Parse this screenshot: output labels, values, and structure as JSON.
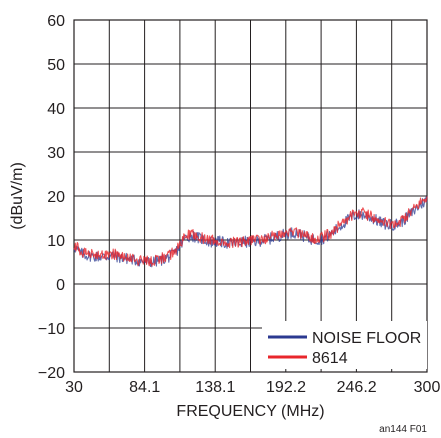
{
  "chart_data": {
    "type": "line",
    "title": "",
    "xlabel": "FREQUENCY (MHz)",
    "ylabel": "(dBuV/m)",
    "xlim": [
      30,
      300
    ],
    "ylim": [
      -20,
      60
    ],
    "x_tick_values": [
      30,
      84.1,
      138.1,
      192.2,
      246.2,
      300
    ],
    "x_tick_labels": [
      "30",
      "84.1",
      "138.1",
      "192.2",
      "246.2",
      "300"
    ],
    "y_tick_values": [
      -20,
      -10,
      0,
      10,
      20,
      30,
      40,
      50,
      60
    ],
    "y_tick_labels": [
      "−20",
      "−10",
      "0",
      "10",
      "20",
      "30",
      "40",
      "50",
      "60"
    ],
    "grid": true,
    "legend_position": "bottom-right",
    "figure_code": "an144 F01",
    "series": [
      {
        "name": "NOISE FLOOR",
        "color": "#2b3990",
        "x": [
          30,
          35,
          40,
          45,
          50,
          55,
          60,
          65,
          70,
          75,
          80,
          85,
          90,
          95,
          100,
          105,
          110,
          115,
          120,
          125,
          130,
          135,
          140,
          145,
          150,
          155,
          160,
          165,
          170,
          175,
          180,
          185,
          190,
          195,
          200,
          205,
          210,
          215,
          220,
          225,
          230,
          235,
          240,
          245,
          250,
          255,
          260,
          265,
          270,
          275,
          280,
          285,
          290,
          295,
          300
        ],
        "y": [
          8.5,
          7,
          6.5,
          6.3,
          6.2,
          6.2,
          6.5,
          6,
          5.8,
          5.5,
          5.2,
          5,
          5,
          5.3,
          5.8,
          6.5,
          8,
          10.5,
          11,
          10.5,
          10,
          9.5,
          9.7,
          9.4,
          9.2,
          9.3,
          9.6,
          9.5,
          9.7,
          10,
          10.3,
          10.8,
          11.2,
          11.6,
          11.7,
          11,
          10.3,
          10,
          10.3,
          11,
          12.2,
          13.5,
          14.7,
          15.6,
          15.8,
          15.4,
          14.7,
          13.9,
          13.4,
          13.5,
          14,
          15.2,
          16.6,
          18,
          19.2
        ]
      },
      {
        "name": "8614",
        "color": "#e8262b",
        "x": [
          30,
          35,
          40,
          45,
          50,
          55,
          60,
          65,
          70,
          75,
          80,
          85,
          90,
          95,
          100,
          105,
          110,
          115,
          120,
          125,
          130,
          135,
          140,
          145,
          150,
          155,
          160,
          165,
          170,
          175,
          180,
          185,
          190,
          195,
          200,
          205,
          210,
          215,
          220,
          225,
          230,
          235,
          240,
          245,
          250,
          255,
          260,
          265,
          270,
          275,
          280,
          285,
          290,
          295,
          300
        ],
        "y": [
          9,
          7.5,
          7,
          6.5,
          6.5,
          6.3,
          7,
          6.2,
          6,
          5.7,
          5.3,
          5.2,
          5.3,
          5.5,
          6.2,
          7,
          8.6,
          11,
          11.3,
          10.8,
          10.2,
          9.8,
          9.9,
          9.6,
          9.5,
          9.5,
          9.9,
          9.8,
          10,
          10.3,
          10.6,
          11,
          11.5,
          11.9,
          12,
          11.3,
          10.6,
          10.3,
          10.6,
          11.3,
          12.5,
          13.8,
          15,
          16,
          16.2,
          15.7,
          15,
          14.2,
          13.8,
          13.8,
          14.4,
          15.6,
          17,
          18.5,
          19.7
        ]
      }
    ]
  }
}
